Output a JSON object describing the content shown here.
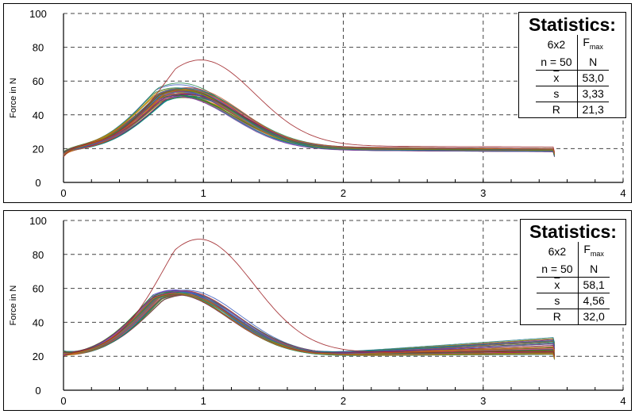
{
  "chart_data": [
    {
      "type": "line",
      "ylabel": "Force in N",
      "xlim": [
        0,
        4
      ],
      "ylim": [
        0,
        100
      ],
      "x_ticks": [
        "0",
        "1",
        "2",
        "3",
        "4"
      ],
      "y_ticks": [
        "0",
        "20",
        "40",
        "60",
        "80",
        "100"
      ],
      "grid": true,
      "n_curves": 50,
      "curve_end_x": 3.5,
      "curve_start_y": 15,
      "curve_tail_y_range": [
        19,
        22
      ],
      "peak_x_typical": 0.85,
      "peak_y_range": [
        50,
        61
      ],
      "outlier_peak": {
        "x": 0.98,
        "y": 72.5,
        "color": "#a0262a"
      },
      "stats": {
        "title": "Statistics:",
        "specimen": "6x2",
        "n": "n = 50",
        "col_head": "F",
        "col_sub": "max",
        "col_unit": "N",
        "rows": [
          {
            "label": "x",
            "value": "53,0"
          },
          {
            "label": "s",
            "value": "3,33"
          },
          {
            "label": "R",
            "value": "21,3"
          }
        ]
      }
    },
    {
      "type": "line",
      "ylabel": "Force in N",
      "xlim": [
        0,
        4
      ],
      "ylim": [
        0,
        100
      ],
      "x_ticks": [
        "0",
        "1",
        "2",
        "3",
        "4"
      ],
      "y_ticks": [
        "0",
        "20",
        "40",
        "60",
        "80",
        "100"
      ],
      "grid": true,
      "n_curves": 50,
      "curve_end_x": 3.5,
      "curve_start_y": 20,
      "curve_tail_y_range": [
        20,
        30
      ],
      "peak_x_typical": 0.83,
      "peak_y_range": [
        56,
        62
      ],
      "outlier_peak": {
        "x": 0.97,
        "y": 89,
        "color": "#a0262a"
      },
      "stats": {
        "title": "Statistics:",
        "specimen": "6x2",
        "n": "n = 50",
        "col_head": "F",
        "col_sub": "max",
        "col_unit": "N",
        "rows": [
          {
            "label": "x",
            "value": "58,1"
          },
          {
            "label": "s",
            "value": "4,56"
          },
          {
            "label": "R",
            "value": "32,0"
          }
        ]
      }
    }
  ]
}
